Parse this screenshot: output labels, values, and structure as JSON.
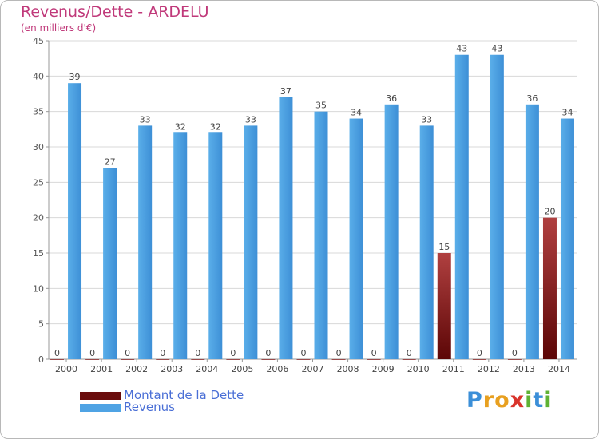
{
  "title": "Revenus/Dette - ARDELU",
  "subtitle": "(en milliers d'€)",
  "chart_data": {
    "type": "bar",
    "categories": [
      "2000",
      "2001",
      "2002",
      "2003",
      "2004",
      "2005",
      "2006",
      "2007",
      "2008",
      "2009",
      "2010",
      "2011",
      "2012",
      "2013",
      "2014"
    ],
    "series": [
      {
        "name": "Montant de la Dette",
        "color": "#7a1010",
        "values": [
          0,
          0,
          0,
          0,
          0,
          0,
          0,
          0,
          0,
          0,
          0,
          15,
          0,
          0,
          20
        ]
      },
      {
        "name": "Revenus",
        "color": "#4fa3e4",
        "values": [
          39,
          27,
          33,
          32,
          32,
          33,
          37,
          35,
          34,
          36,
          33,
          43,
          43,
          36,
          34
        ]
      }
    ],
    "ylim": [
      0,
      45
    ],
    "yticks": [
      0,
      5,
      10,
      15,
      20,
      25,
      30,
      35,
      40,
      45
    ],
    "grid": true,
    "legend_position": "bottom-left"
  },
  "logo": {
    "letters": [
      {
        "ch": "P",
        "color": "#3b8fd8"
      },
      {
        "ch": "r",
        "color": "#e8a020"
      },
      {
        "ch": "o",
        "color": "#e8a020"
      },
      {
        "ch": "x",
        "color": "#d9342b"
      },
      {
        "ch": "i",
        "color": "#5fb233"
      },
      {
        "ch": "t",
        "color": "#3b8fd8"
      },
      {
        "ch": "i",
        "color": "#5fb233"
      }
    ]
  }
}
